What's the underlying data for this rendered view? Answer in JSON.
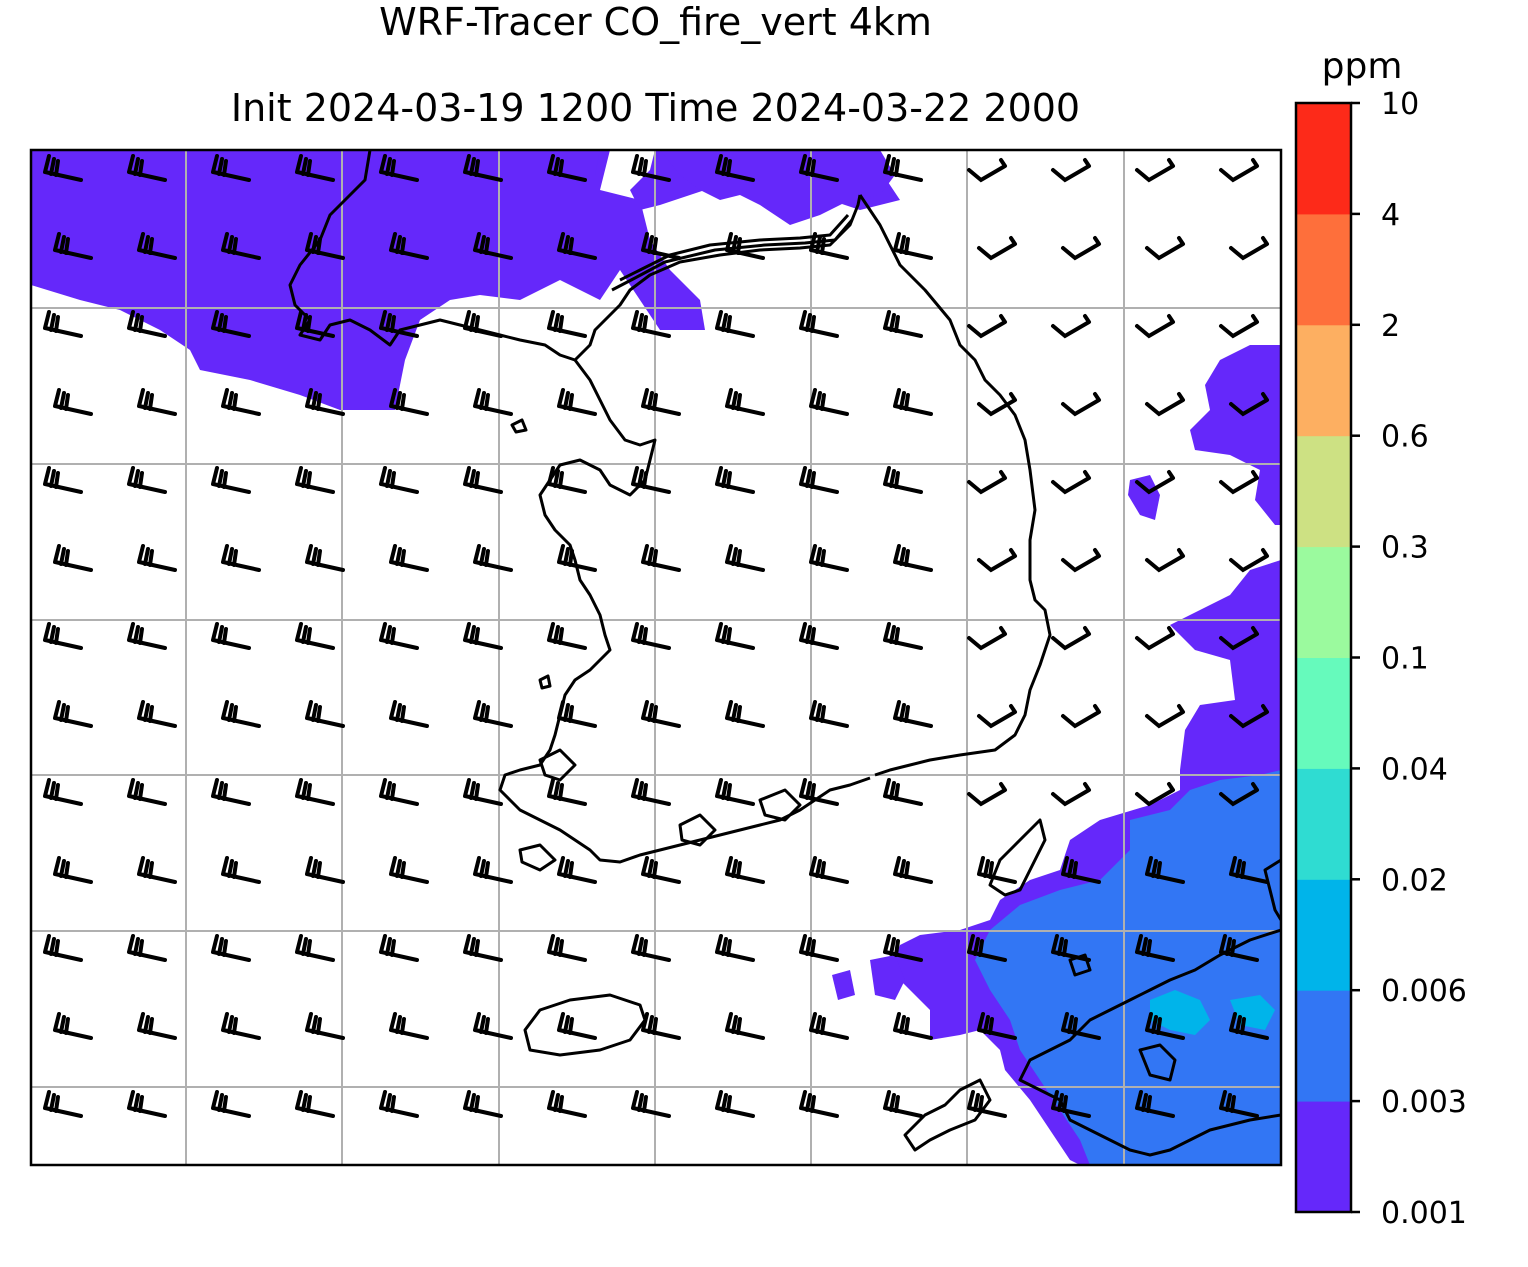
{
  "title": {
    "line1": "WRF-Tracer CO_fire_vert 4km",
    "line2": "Init 2024-03-19 1200 Time 2024-03-22 2000"
  },
  "colorbar": {
    "unit": "ppm",
    "levels": [
      "0.001",
      "0.003",
      "0.006",
      "0.02",
      "0.04",
      "0.1",
      "0.3",
      "0.6",
      "2",
      "4",
      "10"
    ],
    "colors": [
      "#6528fa",
      "#3276f4",
      "#00b4ea",
      "#2fdcd2",
      "#66fabc",
      "#9bfa9e",
      "#cde183",
      "#fdaf61",
      "#fe6f3b",
      "#fd2a19"
    ]
  },
  "map": {
    "fill_color_low": "#6528fa",
    "fill_color_mid": "#3276f4",
    "fill_color_high": "#00b4ea",
    "gridline_color": "#b0b0b0",
    "coastline_color": "#000000",
    "wind_barbs": "black"
  }
}
